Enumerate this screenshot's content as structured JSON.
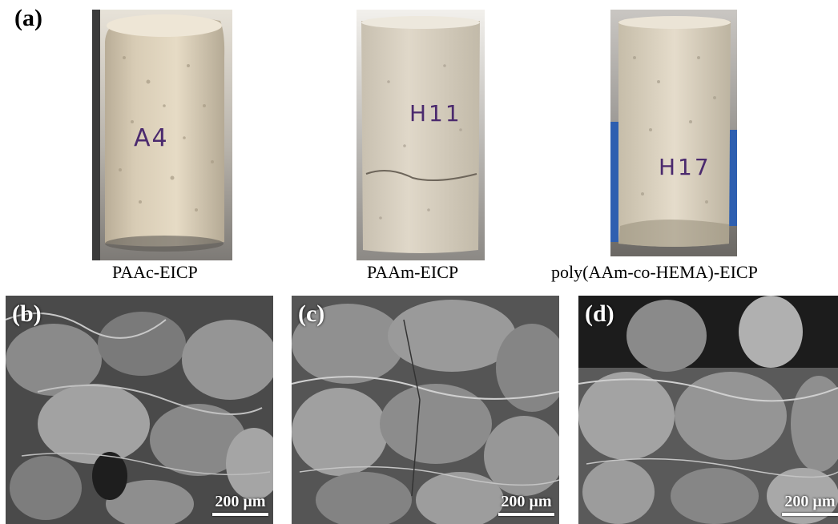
{
  "figure": {
    "panel_a_label": "(a)",
    "samples": [
      {
        "marking": "A4",
        "caption": "PAAc-EICP"
      },
      {
        "marking": "H11",
        "caption": "PAAm-EICP"
      },
      {
        "marking": "H17",
        "caption": "poly(AAm-co-HEMA)-EICP"
      }
    ],
    "sem_panels": [
      {
        "label": "(b)",
        "scale": "200 µm"
      },
      {
        "label": "(c)",
        "scale": "200 µm"
      },
      {
        "label": "(d)",
        "scale": "200 µm"
      }
    ]
  }
}
